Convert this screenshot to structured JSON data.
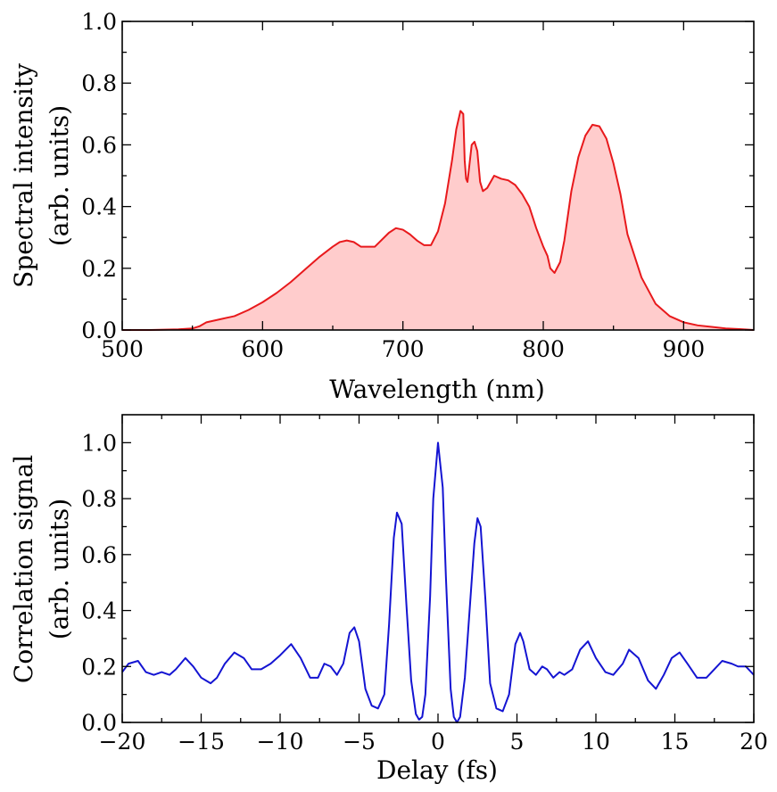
{
  "chart_data": [
    {
      "type": "area",
      "xlabel": "Wavelength (nm)",
      "ylabel_line1": "Spectral intensity",
      "ylabel_line2": "(arb. units)",
      "xlim": [
        500,
        950
      ],
      "ylim": [
        0.0,
        1.0
      ],
      "xticks": [
        500,
        600,
        700,
        800,
        900
      ],
      "xtick_labels": [
        "500",
        "600",
        "700",
        "800",
        "900"
      ],
      "yticks": [
        0.0,
        0.2,
        0.4,
        0.6,
        0.8,
        1.0
      ],
      "ytick_labels": [
        "0.0",
        "0.2",
        "0.4",
        "0.6",
        "0.8",
        "1.0"
      ],
      "grid": false,
      "line_color": "#e8191c",
      "fill_color": "#ffcccc",
      "series": [
        {
          "x": [
            500,
            520,
            540,
            550,
            555,
            560,
            570,
            580,
            590,
            600,
            610,
            620,
            630,
            640,
            650,
            655,
            660,
            665,
            670,
            680,
            690,
            695,
            700,
            705,
            710,
            715,
            720,
            725,
            730,
            735,
            738,
            741,
            743,
            744,
            745,
            746,
            747,
            749,
            751,
            753,
            755,
            757,
            760,
            765,
            770,
            775,
            780,
            785,
            790,
            795,
            800,
            803,
            805,
            808,
            812,
            815,
            820,
            825,
            830,
            835,
            840,
            845,
            850,
            855,
            860,
            870,
            880,
            890,
            900,
            910,
            920,
            930,
            940,
            950
          ],
          "y": [
            0.0,
            0.0,
            0.002,
            0.005,
            0.012,
            0.025,
            0.035,
            0.045,
            0.065,
            0.09,
            0.12,
            0.155,
            0.195,
            0.235,
            0.27,
            0.285,
            0.29,
            0.285,
            0.27,
            0.27,
            0.315,
            0.33,
            0.325,
            0.31,
            0.29,
            0.275,
            0.275,
            0.32,
            0.41,
            0.55,
            0.65,
            0.71,
            0.7,
            0.55,
            0.49,
            0.48,
            0.52,
            0.6,
            0.61,
            0.58,
            0.48,
            0.45,
            0.46,
            0.5,
            0.49,
            0.485,
            0.47,
            0.44,
            0.4,
            0.33,
            0.27,
            0.24,
            0.2,
            0.185,
            0.22,
            0.29,
            0.45,
            0.56,
            0.63,
            0.665,
            0.66,
            0.62,
            0.54,
            0.44,
            0.31,
            0.17,
            0.085,
            0.045,
            0.025,
            0.015,
            0.01,
            0.005,
            0.003,
            0.0
          ]
        }
      ]
    },
    {
      "type": "line",
      "xlabel": "Delay (fs)",
      "ylabel_line1": "Correlation signal",
      "ylabel_line2": "(arb. units)",
      "xlim": [
        -20,
        20
      ],
      "ylim": [
        0.0,
        1.1
      ],
      "xticks": [
        -20,
        -15,
        -10,
        -5,
        0,
        5,
        10,
        15,
        20
      ],
      "xtick_labels": [
        "−20",
        "−15",
        "−10",
        "−5",
        "0",
        "5",
        "10",
        "15",
        "20"
      ],
      "yticks": [
        0.0,
        0.2,
        0.4,
        0.6,
        0.8,
        1.0
      ],
      "ytick_labels": [
        "0.0",
        "0.2",
        "0.4",
        "0.6",
        "0.8",
        "1.0"
      ],
      "grid": false,
      "line_color": "#1414d2",
      "series": [
        {
          "x": [
            -20,
            -19.6,
            -19.0,
            -18.5,
            -18.0,
            -17.5,
            -17.0,
            -16.6,
            -16.0,
            -15.5,
            -15.0,
            -14.4,
            -14.0,
            -13.5,
            -12.9,
            -12.3,
            -11.8,
            -11.2,
            -10.6,
            -10.0,
            -9.3,
            -8.7,
            -8.1,
            -7.6,
            -7.2,
            -6.8,
            -6.4,
            -6.0,
            -5.6,
            -5.3,
            -5.0,
            -4.6,
            -4.2,
            -3.8,
            -3.4,
            -3.1,
            -2.8,
            -2.6,
            -2.3,
            -2.0,
            -1.7,
            -1.4,
            -1.2,
            -1.0,
            -0.8,
            -0.5,
            -0.3,
            0,
            0.3,
            0.5,
            0.8,
            1.0,
            1.2,
            1.4,
            1.7,
            2.0,
            2.3,
            2.5,
            2.7,
            3.0,
            3.3,
            3.7,
            4.1,
            4.5,
            4.9,
            5.2,
            5.4,
            5.8,
            6.2,
            6.6,
            6.9,
            7.3,
            7.7,
            8.0,
            8.5,
            9.0,
            9.5,
            10.0,
            10.6,
            11.1,
            11.7,
            12.1,
            12.7,
            13.3,
            13.8,
            14.3,
            14.8,
            15.3,
            15.8,
            16.4,
            17.0,
            17.5,
            18.0,
            18.6,
            19.0,
            19.5,
            20
          ],
          "y": [
            0.18,
            0.21,
            0.22,
            0.18,
            0.17,
            0.18,
            0.17,
            0.19,
            0.23,
            0.2,
            0.16,
            0.14,
            0.16,
            0.21,
            0.25,
            0.23,
            0.19,
            0.19,
            0.21,
            0.24,
            0.28,
            0.23,
            0.16,
            0.16,
            0.21,
            0.2,
            0.17,
            0.21,
            0.32,
            0.34,
            0.29,
            0.12,
            0.06,
            0.05,
            0.1,
            0.35,
            0.66,
            0.75,
            0.71,
            0.42,
            0.15,
            0.03,
            0.01,
            0.02,
            0.1,
            0.45,
            0.8,
            1.0,
            0.84,
            0.52,
            0.12,
            0.02,
            0.0,
            0.02,
            0.16,
            0.4,
            0.64,
            0.73,
            0.7,
            0.44,
            0.14,
            0.05,
            0.04,
            0.1,
            0.28,
            0.32,
            0.29,
            0.19,
            0.17,
            0.2,
            0.19,
            0.16,
            0.18,
            0.17,
            0.19,
            0.26,
            0.29,
            0.23,
            0.18,
            0.17,
            0.21,
            0.26,
            0.23,
            0.15,
            0.12,
            0.17,
            0.23,
            0.25,
            0.21,
            0.16,
            0.16,
            0.19,
            0.22,
            0.21,
            0.2,
            0.2,
            0.17
          ]
        }
      ]
    }
  ]
}
